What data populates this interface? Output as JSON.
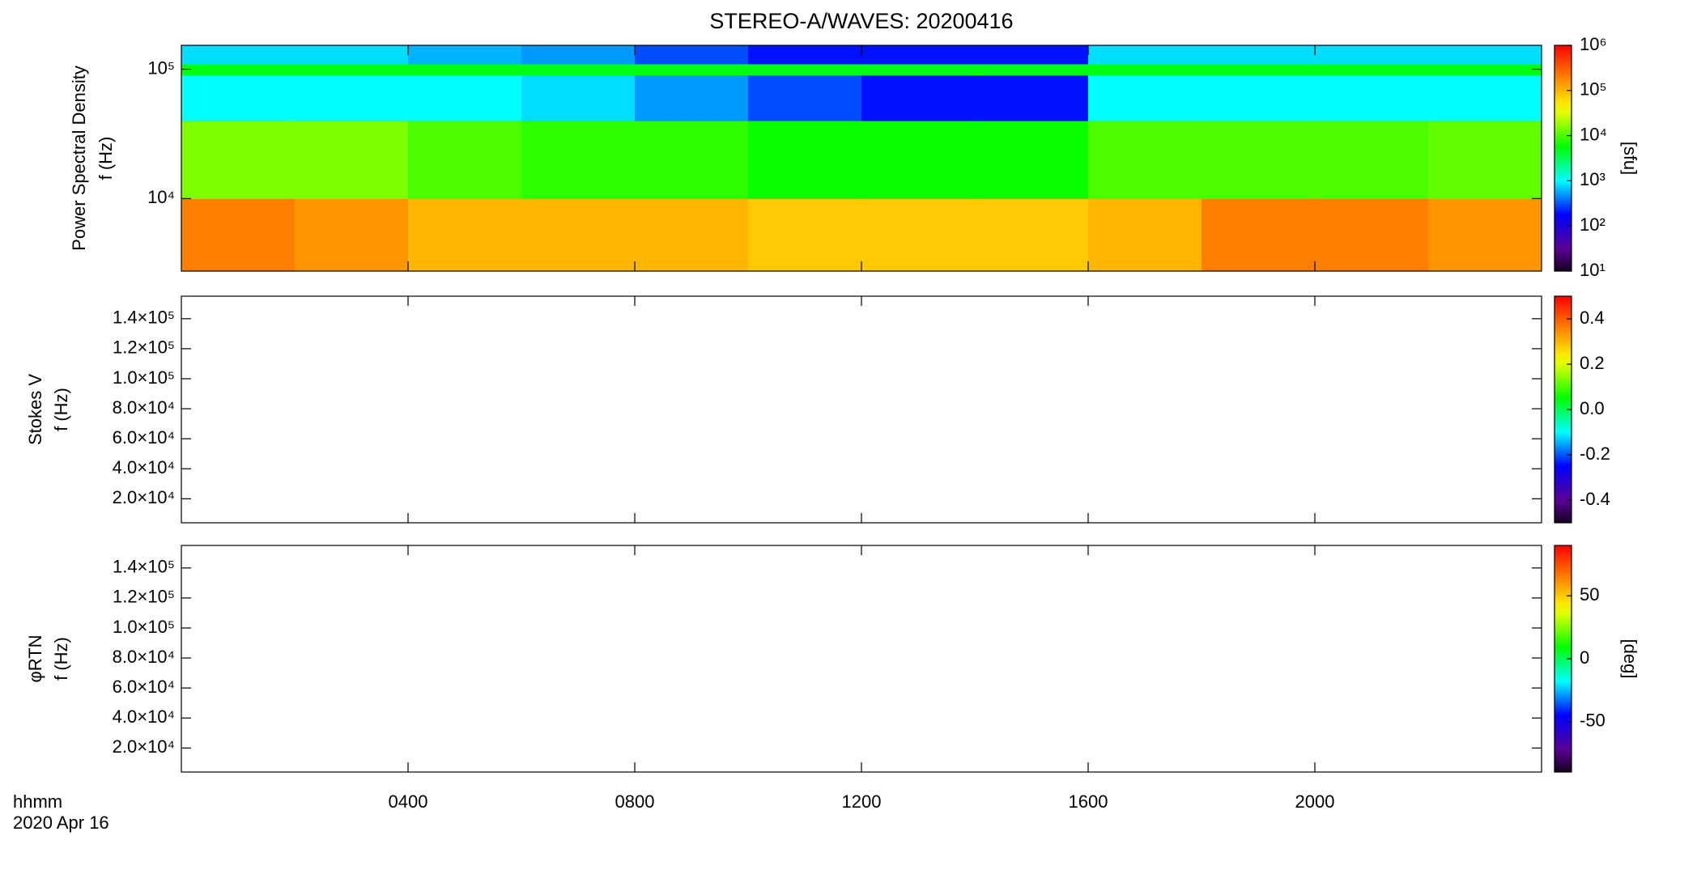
{
  "chart_data": [
    {
      "type": "heatmap",
      "title": "STEREO-A/WAVES: 20200416",
      "ylabel": [
        "Power Spectral Density",
        "f (Hz)"
      ],
      "xlim": [
        0,
        24
      ],
      "ylim": [
        2750,
        153000
      ],
      "ylog": true,
      "yticks": [
        {
          "value": 10000,
          "label": "10⁴"
        },
        {
          "value": 100000,
          "label": "10⁵"
        }
      ],
      "x": [
        0,
        2,
        4,
        6,
        8,
        10,
        12,
        14,
        16,
        18,
        20,
        22,
        24
      ],
      "y": [
        2750,
        10000,
        40000,
        90000,
        110000,
        153000
      ],
      "z": [
        [
          200000,
          150000,
          100000,
          100000,
          100000,
          80000,
          80000,
          80000,
          100000,
          200000,
          200000,
          150000
        ],
        [
          15000,
          15000,
          10000,
          8000,
          8000,
          6000,
          6000,
          6000,
          10000,
          10000,
          10000,
          12000
        ],
        [
          1000,
          1000,
          1000,
          800,
          500,
          300,
          200,
          200,
          1000,
          1000,
          1000,
          1000
        ],
        [
          5000,
          5000,
          5000,
          5000,
          5000,
          5000,
          5000,
          5000,
          5000,
          5000,
          5000,
          5000
        ],
        [
          800,
          800,
          600,
          500,
          300,
          200,
          200,
          200,
          800,
          800,
          800,
          800
        ]
      ],
      "zlim": [
        10,
        1000000
      ],
      "zlog": true,
      "zlabel": "[sfu]",
      "zticks": [
        {
          "value": 10,
          "label": "10¹"
        },
        {
          "value": 100,
          "label": "10²"
        },
        {
          "value": 1000,
          "label": "10³"
        },
        {
          "value": 10000,
          "label": "10⁴"
        },
        {
          "value": 100000,
          "label": "10⁵"
        },
        {
          "value": 1000000,
          "label": "10⁶"
        }
      ]
    },
    {
      "type": "heatmap",
      "ylabel": [
        "Stokes V",
        "f (Hz)"
      ],
      "xlim": [
        0,
        24
      ],
      "ylim": [
        4000,
        155000
      ],
      "yticks": [
        {
          "value": 20000,
          "label": "2.0×10⁴"
        },
        {
          "value": 40000,
          "label": "4.0×10⁴"
        },
        {
          "value": 60000,
          "label": "6.0×10⁴"
        },
        {
          "value": 80000,
          "label": "8.0×10⁴"
        },
        {
          "value": 100000,
          "label": "1.0×10⁵"
        },
        {
          "value": 120000,
          "label": "1.2×10⁵"
        },
        {
          "value": 140000,
          "label": "1.4×10⁵"
        }
      ],
      "zlim": [
        -0.5,
        0.5
      ],
      "zticks": [
        -0.4,
        -0.2,
        {
          "value": 0,
          "label": "0.0"
        },
        0.2,
        0.4
      ]
    },
    {
      "type": "heatmap",
      "ylabel": [
        "φRTN",
        "f (Hz)"
      ],
      "xlim": [
        0,
        24
      ],
      "ylim": [
        4000,
        155000
      ],
      "yticks": [
        {
          "value": 20000,
          "label": "2.0×10⁴"
        },
        {
          "value": 40000,
          "label": "4.0×10⁴"
        },
        {
          "value": 60000,
          "label": "6.0×10⁴"
        },
        {
          "value": 80000,
          "label": "8.0×10⁴"
        },
        {
          "value": 100000,
          "label": "1.0×10⁵"
        },
        {
          "value": 120000,
          "label": "1.2×10⁵"
        },
        {
          "value": 140000,
          "label": "1.4×10⁵"
        }
      ],
      "zlim": [
        -90,
        90
      ],
      "zlabel": "[deg]",
      "zticks": [
        -50,
        0,
        50
      ],
      "xlabel": [
        "hhmm",
        "2020 Apr 16"
      ],
      "xticks": [
        {
          "value": 4,
          "label": "0400"
        },
        {
          "value": 8,
          "label": "0800"
        },
        {
          "value": 12,
          "label": "1200"
        },
        {
          "value": 16,
          "label": "1600"
        },
        {
          "value": 20,
          "label": "2000"
        }
      ]
    }
  ]
}
